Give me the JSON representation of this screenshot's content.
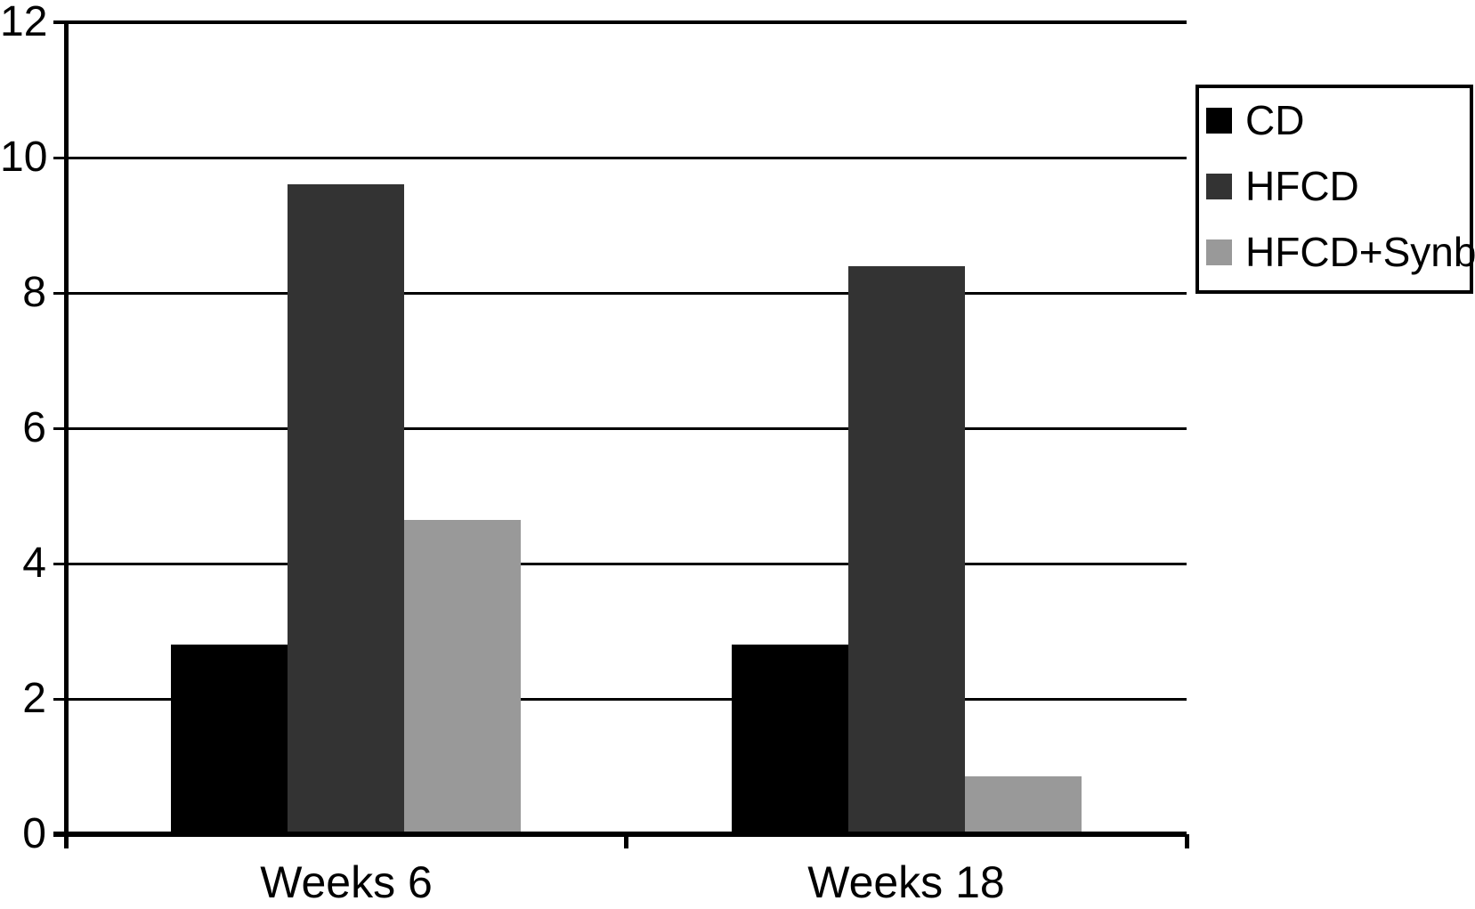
{
  "figure": {
    "background_color": "#ffffff",
    "axis_color": "#000000",
    "title": ""
  },
  "chart_data": {
    "type": "bar",
    "categories": [
      "Weeks 6",
      "Weeks 18"
    ],
    "series": [
      {
        "name": "CD",
        "color": "#000000",
        "values": [
          2.8,
          2.8
        ]
      },
      {
        "name": "HFCD",
        "color": "#333333",
        "values": [
          9.6,
          8.4
        ]
      },
      {
        "name": "HFCD+Synb",
        "color": "#999999",
        "values": [
          4.65,
          0.85
        ]
      }
    ],
    "title": "",
    "xlabel": "",
    "ylabel": "",
    "ylim": [
      0,
      12
    ],
    "yticks": [
      0,
      2,
      4,
      6,
      8,
      10,
      12
    ],
    "grid": true,
    "grouped": true,
    "legend_position": "upper-right",
    "legend_labels": [
      "CD",
      "HFCD",
      "HFCD+Synb"
    ]
  }
}
